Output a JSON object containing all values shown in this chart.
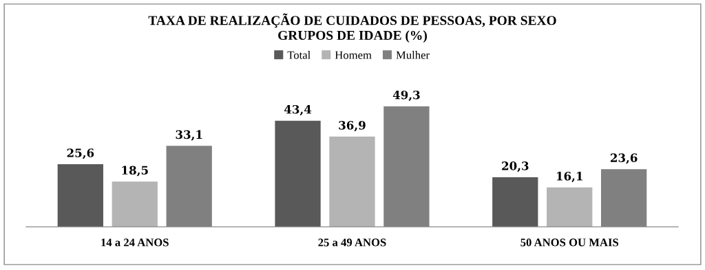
{
  "chart_data": {
    "type": "bar",
    "title": "TAXA DE REALIZAÇÃO DE CUIDADOS DE PESSOAS, POR SEXO\nGRUPOS DE IDADE (%)",
    "categories": [
      "14 a 24 ANOS",
      "25 a 49 ANOS",
      "50 ANOS OU MAIS"
    ],
    "series": [
      {
        "name": "Total",
        "color": "#595959",
        "values": [
          25.6,
          43.4,
          20.3
        ],
        "value_labels": [
          "25,6",
          "43,4",
          "20,3"
        ]
      },
      {
        "name": "Homem",
        "color": "#b4b4b4",
        "values": [
          18.5,
          36.9,
          16.1
        ],
        "value_labels": [
          "18,5",
          "36,9",
          "16,1"
        ]
      },
      {
        "name": "Mulher",
        "color": "#808080",
        "values": [
          33.1,
          49.3,
          23.6
        ],
        "value_labels": [
          "33,1",
          "49,3",
          "23,6"
        ]
      }
    ],
    "legend": "top",
    "grid": false
  }
}
